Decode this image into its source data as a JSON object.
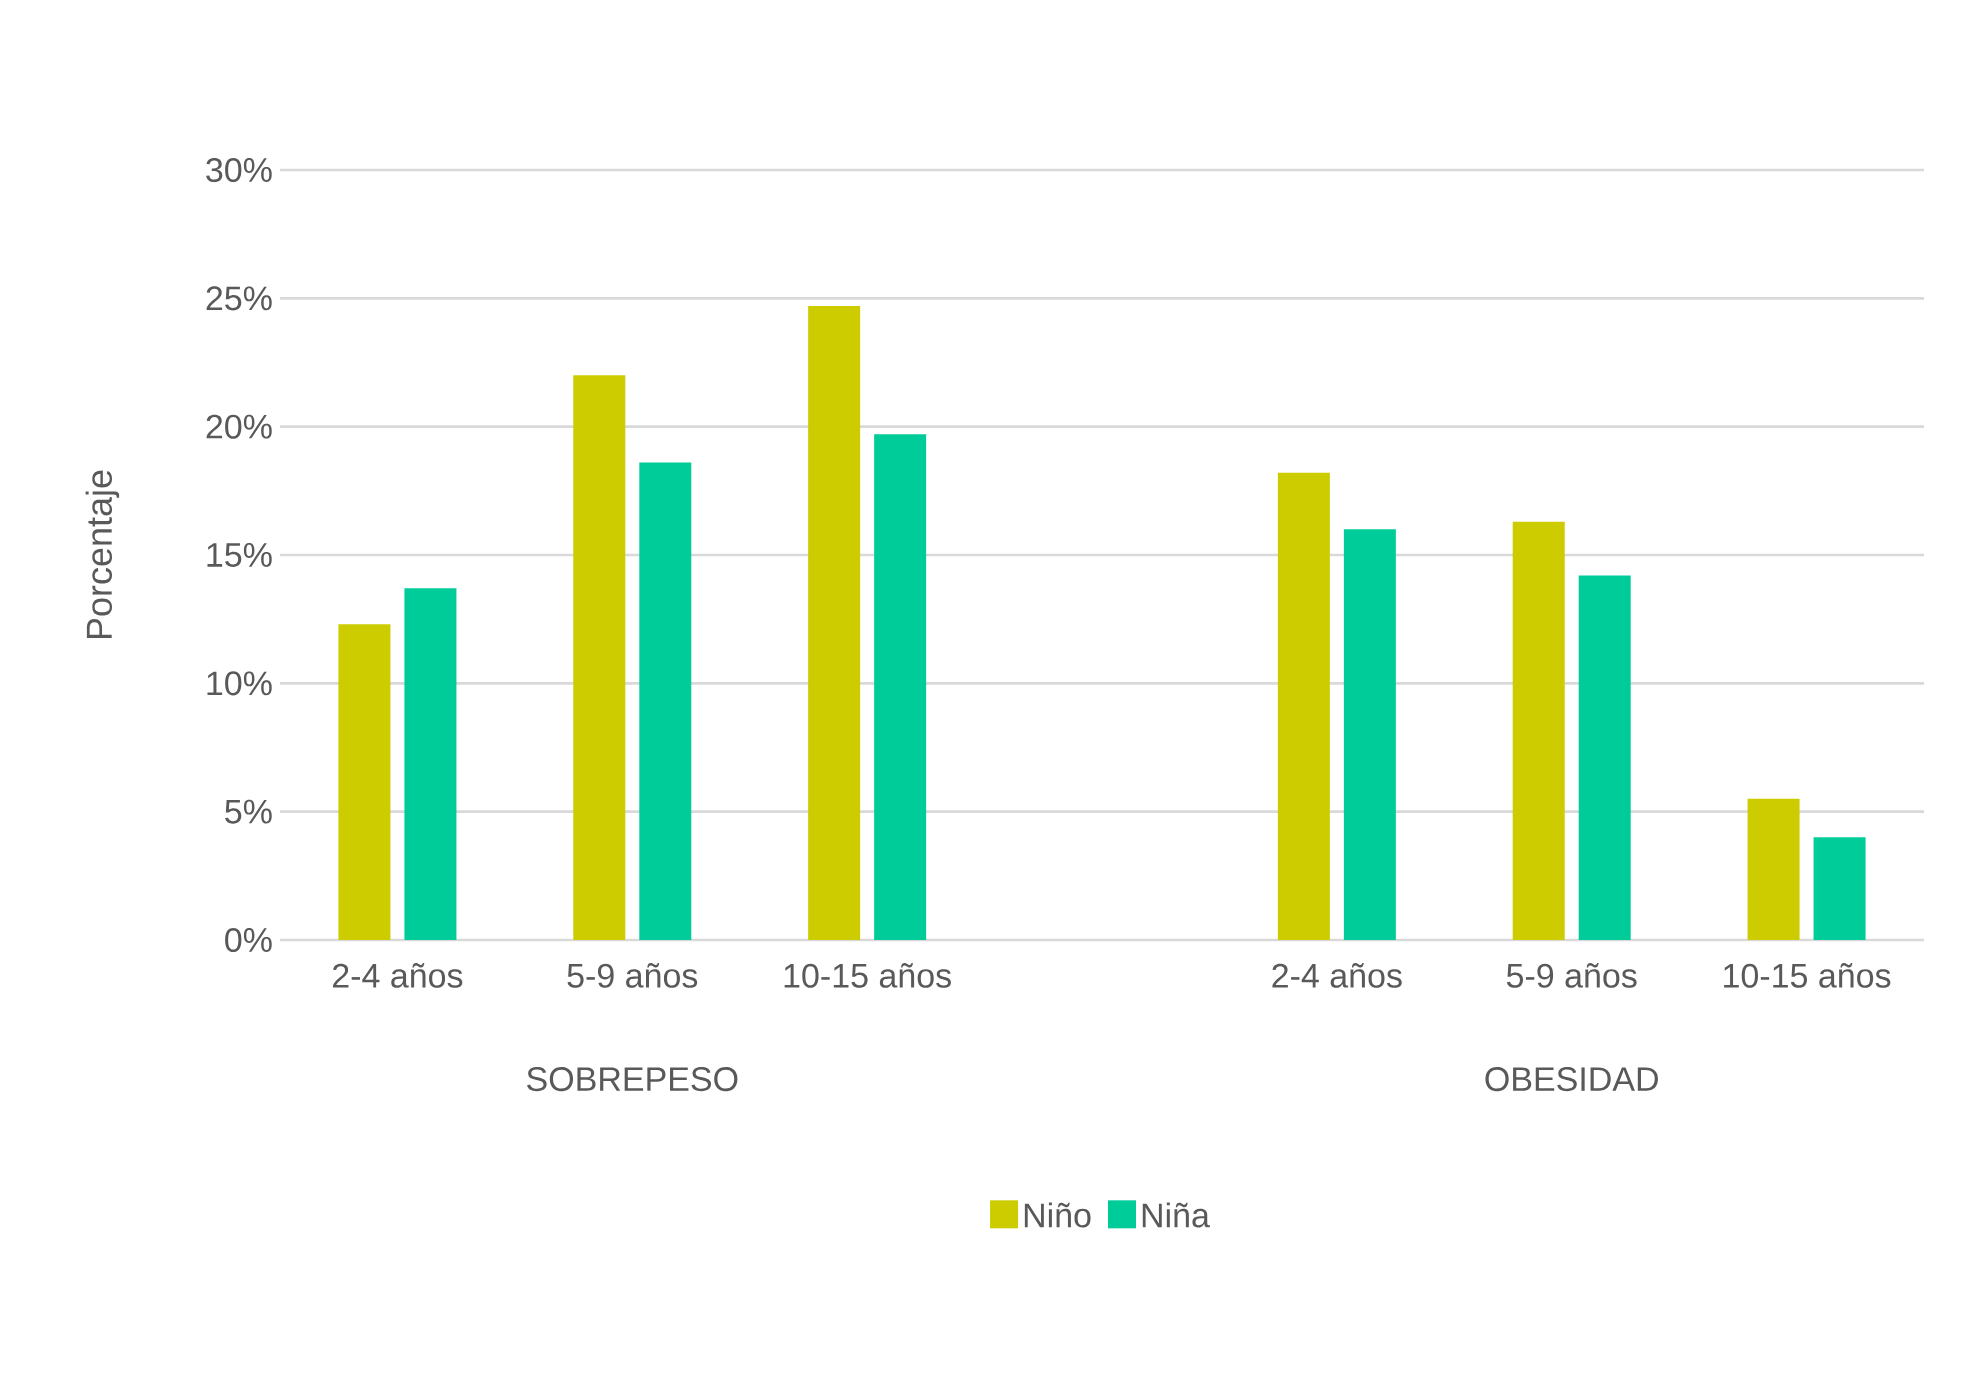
{
  "chart_data": {
    "type": "bar",
    "ylabel": "Porcentaje",
    "categories": [
      "2-4 años",
      "5-9 años",
      "10-15 años",
      null,
      "2-4 años",
      "5-9 años",
      "10-15 años"
    ],
    "series": [
      {
        "name": "Niño",
        "color": "#cccc00",
        "values": [
          12.3,
          22.0,
          24.7,
          null,
          18.2,
          16.3,
          5.5
        ]
      },
      {
        "name": "Niña",
        "color": "#00cc99",
        "values": [
          13.7,
          18.6,
          19.7,
          null,
          16.0,
          14.2,
          4.0
        ]
      }
    ],
    "ylim": [
      0,
      30
    ],
    "yticks": [
      {
        "value": 0,
        "label": "0%"
      },
      {
        "value": 5,
        "label": "5%"
      },
      {
        "value": 10,
        "label": "10%"
      },
      {
        "value": 15,
        "label": "15%"
      },
      {
        "value": 20,
        "label": "20%"
      },
      {
        "value": 25,
        "label": "25%"
      },
      {
        "value": 30,
        "label": "30%"
      }
    ],
    "annotations": [
      "SOBREPESO",
      "OBESIDAD"
    ],
    "grid": "y",
    "legend": "bottom"
  }
}
